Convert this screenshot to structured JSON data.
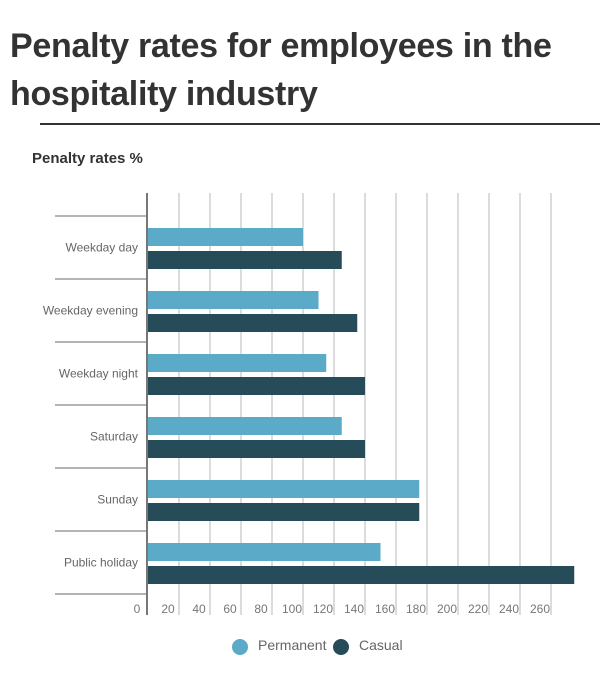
{
  "title": "Penalty rates for employees in the hospitality industry",
  "chart_data": {
    "type": "bar",
    "orientation": "horizontal",
    "title": "Penalty rates %",
    "xlabel": "",
    "ylabel": "",
    "categories": [
      "Weekday day",
      "Weekday evening",
      "Weekday night",
      "Saturday",
      "Sunday",
      "Public holiday"
    ],
    "series": [
      {
        "name": "Permanent",
        "color": "#5aaac8",
        "values": [
          100,
          110,
          115,
          125,
          175,
          150
        ]
      },
      {
        "name": "Casual",
        "color": "#264c59",
        "values": [
          125,
          135,
          140,
          140,
          175,
          275
        ]
      }
    ],
    "xlim": [
      0,
      280
    ],
    "xticks": [
      0,
      20,
      40,
      60,
      80,
      100,
      120,
      140,
      160,
      180,
      200,
      220,
      240,
      260
    ],
    "grid": true,
    "legend": "bottom-center"
  }
}
